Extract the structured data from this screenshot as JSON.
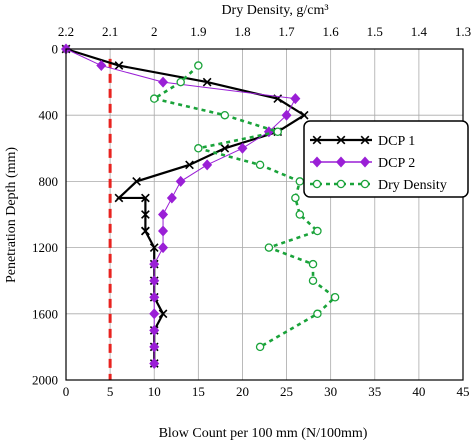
{
  "chart_data": {
    "type": "line",
    "xlabel": "Blow Count per 100 mm (N/100mm)",
    "ylabel": "Penetration Depth (mm)",
    "top_xlabel": "Dry Density, g/cm³",
    "xlim": [
      0,
      45
    ],
    "ylim": [
      2000,
      0
    ],
    "top_xlim": [
      2.2,
      1.3
    ],
    "x_ticks": [
      "0",
      "5",
      "10",
      "15",
      "20",
      "25",
      "30",
      "35",
      "40",
      "45"
    ],
    "y_ticks": [
      "0",
      "400",
      "800",
      "1200",
      "1600",
      "2000"
    ],
    "top_x_ticks": [
      "2.2",
      "2.1",
      "2",
      "1.9",
      "1.8",
      "1.7",
      "1.6",
      "1.5",
      "1.4",
      "1.3"
    ],
    "grid": true,
    "legend_position": "right",
    "reference_line": {
      "x": 5,
      "color": "#e8231f"
    },
    "series": [
      {
        "name": "DCP 1",
        "axis": "bottom",
        "color": "#000000",
        "marker": "x",
        "points": [
          [
            0,
            0
          ],
          [
            6,
            100
          ],
          [
            16,
            200
          ],
          [
            24,
            300
          ],
          [
            27,
            400
          ],
          [
            24,
            500
          ],
          [
            18,
            600
          ],
          [
            14,
            700
          ],
          [
            8,
            800
          ],
          [
            6,
            900
          ],
          [
            9,
            900
          ],
          [
            9,
            1000
          ],
          [
            9,
            1100
          ],
          [
            9,
            1100
          ],
          [
            10,
            1200
          ],
          [
            10,
            1300
          ],
          [
            10,
            1400
          ],
          [
            10,
            1500
          ],
          [
            11,
            1600
          ],
          [
            10,
            1700
          ],
          [
            10,
            1800
          ],
          [
            10,
            1900
          ]
        ]
      },
      {
        "name": "DCP 2",
        "axis": "bottom",
        "color": "#9a1fd6",
        "marker": "diamond",
        "points": [
          [
            0,
            0
          ],
          [
            4,
            100
          ],
          [
            11,
            200
          ],
          [
            26,
            300
          ],
          [
            25,
            400
          ],
          [
            23,
            500
          ],
          [
            20,
            600
          ],
          [
            16,
            700
          ],
          [
            13,
            800
          ],
          [
            12,
            900
          ],
          [
            11,
            1000
          ],
          [
            11,
            1100
          ],
          [
            11,
            1200
          ],
          [
            10,
            1300
          ],
          [
            10,
            1400
          ],
          [
            10,
            1500
          ],
          [
            10,
            1600
          ],
          [
            10,
            1700
          ],
          [
            10,
            1800
          ],
          [
            10,
            1900
          ]
        ]
      },
      {
        "name": "Dry Density",
        "axis": "top",
        "color": "#1aa33a",
        "marker": "open-circle",
        "points": [
          [
            1.9,
            100
          ],
          [
            1.94,
            200
          ],
          [
            2.0,
            300
          ],
          [
            1.84,
            400
          ],
          [
            1.72,
            500
          ],
          [
            1.9,
            600
          ],
          [
            1.76,
            700
          ],
          [
            1.67,
            800
          ],
          [
            1.68,
            900
          ],
          [
            1.67,
            1000
          ],
          [
            1.63,
            1100
          ],
          [
            1.74,
            1200
          ],
          [
            1.64,
            1300
          ],
          [
            1.64,
            1400
          ],
          [
            1.59,
            1500
          ],
          [
            1.63,
            1600
          ],
          [
            1.76,
            1800
          ]
        ]
      }
    ]
  }
}
